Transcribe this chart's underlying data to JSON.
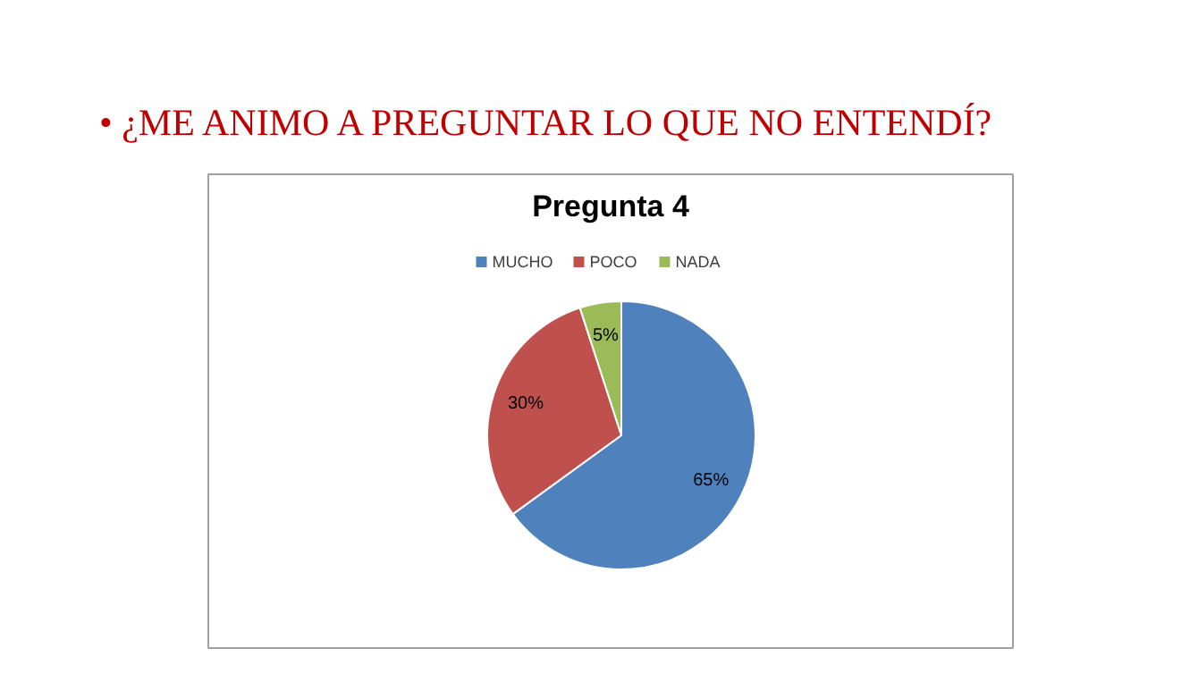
{
  "chart_data": {
    "type": "pie",
    "title": "• ¿ME ANIMO A PREGUNTAR LO QUE NO ENTENDÍ?",
    "subtitle": "Pregunta 4",
    "categories": [
      "MUCHO",
      "POCO",
      "NADA"
    ],
    "values": [
      65,
      30,
      5
    ],
    "colors": [
      "#4f81bd",
      "#c0504d",
      "#9bbb59"
    ],
    "value_labels": [
      "65%",
      "30%",
      "5%"
    ],
    "legend": "top"
  }
}
